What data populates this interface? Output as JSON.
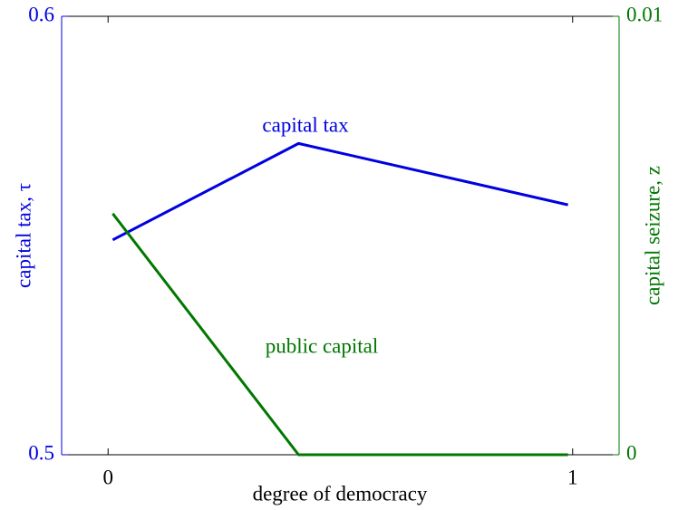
{
  "chart_data": {
    "type": "line",
    "x": [
      0.01,
      0.41,
      0.99
    ],
    "series": [
      {
        "name": "capital tax",
        "color": "#0000e0",
        "values": [
          0.549,
          0.571,
          0.557
        ]
      },
      {
        "name": "public capital",
        "color": "#007800",
        "values": [
          0.0055,
          0,
          0
        ],
        "axis": "y2"
      }
    ],
    "xlabel": "degree of democracy",
    "ylabel": "capital tax, τ",
    "y2label": "capital seizure, z",
    "xlim": [
      -0.1,
      1.1
    ],
    "xticks": [
      0,
      1
    ],
    "ylim": [
      0.5,
      0.6
    ],
    "yticks": [
      0.5,
      0.6
    ],
    "y2lim": [
      0,
      0.01
    ],
    "y2ticks": [
      0,
      0.01
    ]
  }
}
